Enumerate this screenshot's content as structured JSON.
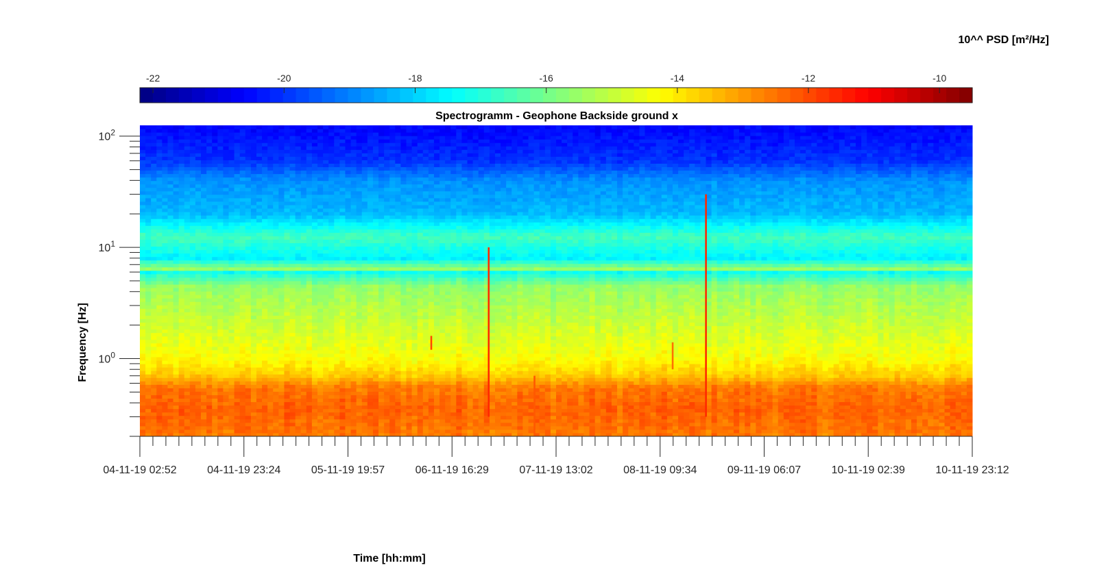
{
  "chart_data": {
    "type": "heatmap",
    "title": "Spectrogramm - Geophone Backside ground x",
    "xlabel": "Time [hh:mm]",
    "ylabel": "Frequency [Hz]",
    "colorbar_label": "10^^ PSD [m²/Hz]",
    "colorbar_ticks": [
      "-22",
      "-20",
      "-18",
      "-16",
      "-14",
      "-12",
      "-10"
    ],
    "colorbar_range": [
      -22.2,
      -9.5
    ],
    "colormap": "jet",
    "x_tick_labels": [
      "04-11-19 02:52",
      "04-11-19 23:24",
      "05-11-19 19:57",
      "06-11-19 16:29",
      "07-11-19 13:02",
      "08-11-19 09:34",
      "09-11-19 06:07",
      "10-11-19 02:39",
      "10-11-19 23:12"
    ],
    "y_scale": "log",
    "y_range_hz": [
      0.2,
      125
    ],
    "y_tick_labels": [
      {
        "base": "10",
        "exp": "0",
        "value": 1
      },
      {
        "base": "10",
        "exp": "1",
        "value": 10
      },
      {
        "base": "10",
        "exp": "2",
        "value": 100
      }
    ],
    "psd_profile": [
      {
        "freq_hz": 0.2,
        "log_psd": -12.6
      },
      {
        "freq_hz": 0.35,
        "log_psd": -12.3
      },
      {
        "freq_hz": 0.55,
        "log_psd": -12.6
      },
      {
        "freq_hz": 0.7,
        "log_psd": -13.6
      },
      {
        "freq_hz": 1.0,
        "log_psd": -14.3
      },
      {
        "freq_hz": 2.0,
        "log_psd": -14.9
      },
      {
        "freq_hz": 4.5,
        "log_psd": -15.6
      },
      {
        "freq_hz": 6.0,
        "log_psd": -17.3
      },
      {
        "freq_hz": 6.3,
        "log_psd": -15.4
      },
      {
        "freq_hz": 8.0,
        "log_psd": -17.6
      },
      {
        "freq_hz": 12.5,
        "log_psd": -16.6
      },
      {
        "freq_hz": 20,
        "log_psd": -18.3
      },
      {
        "freq_hz": 40,
        "log_psd": -18.8
      },
      {
        "freq_hz": 60,
        "log_psd": -20.0
      },
      {
        "freq_hz": 125,
        "log_psd": -20.6
      }
    ],
    "transient_events": [
      {
        "time_fraction": 0.419,
        "freq_range_hz": [
          0.3,
          10
        ],
        "log_psd": -11.6
      },
      {
        "time_fraction": 0.68,
        "freq_range_hz": [
          0.3,
          30
        ],
        "log_psd": -11.6
      },
      {
        "time_fraction": 0.474,
        "freq_range_hz": [
          0.2,
          0.7
        ],
        "log_psd": -12.2
      },
      {
        "time_fraction": 0.35,
        "freq_range_hz": [
          1.2,
          1.6
        ],
        "log_psd": -12.0
      },
      {
        "time_fraction": 0.64,
        "freq_range_hz": [
          0.8,
          1.4
        ],
        "log_psd": -12.5
      }
    ]
  }
}
